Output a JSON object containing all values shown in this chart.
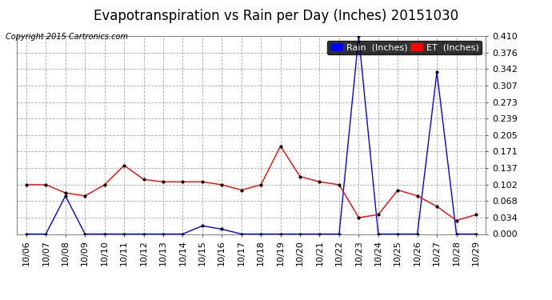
{
  "title": "Evapotranspiration vs Rain per Day (Inches) 20151030",
  "copyright": "Copyright 2015 Cartronics.com",
  "dates": [
    "10/06",
    "10/07",
    "10/08",
    "10/09",
    "10/10",
    "10/11",
    "10/12",
    "10/13",
    "10/14",
    "10/15",
    "10/16",
    "10/17",
    "10/18",
    "10/19",
    "10/20",
    "10/21",
    "10/22",
    "10/23",
    "10/24",
    "10/25",
    "10/26",
    "10/27",
    "10/28",
    "10/29"
  ],
  "rain": [
    0.0,
    0.0,
    0.079,
    0.0,
    0.0,
    0.0,
    0.0,
    0.0,
    0.0,
    0.017,
    0.01,
    0.0,
    0.0,
    0.0,
    0.0,
    0.0,
    0.0,
    0.41,
    0.0,
    0.0,
    0.0,
    0.335,
    0.0,
    0.0
  ],
  "et": [
    0.102,
    0.102,
    0.085,
    0.079,
    0.102,
    0.142,
    0.113,
    0.108,
    0.108,
    0.108,
    0.102,
    0.091,
    0.102,
    0.182,
    0.119,
    0.108,
    0.102,
    0.034,
    0.04,
    0.091,
    0.079,
    0.057,
    0.028,
    0.04
  ],
  "rain_color": "#0000ff",
  "et_color": "#ff0000",
  "background_color": "#ffffff",
  "grid_color": "#aaaaaa",
  "ylim": [
    0.0,
    0.41
  ],
  "yticks": [
    0.0,
    0.034,
    0.068,
    0.102,
    0.137,
    0.171,
    0.205,
    0.239,
    0.273,
    0.307,
    0.342,
    0.376,
    0.41
  ],
  "legend_rain_label": "Rain  (Inches)",
  "legend_et_label": "ET  (Inches)",
  "title_fontsize": 12,
  "copyright_fontsize": 7,
  "tick_fontsize": 8,
  "legend_fontsize": 8
}
